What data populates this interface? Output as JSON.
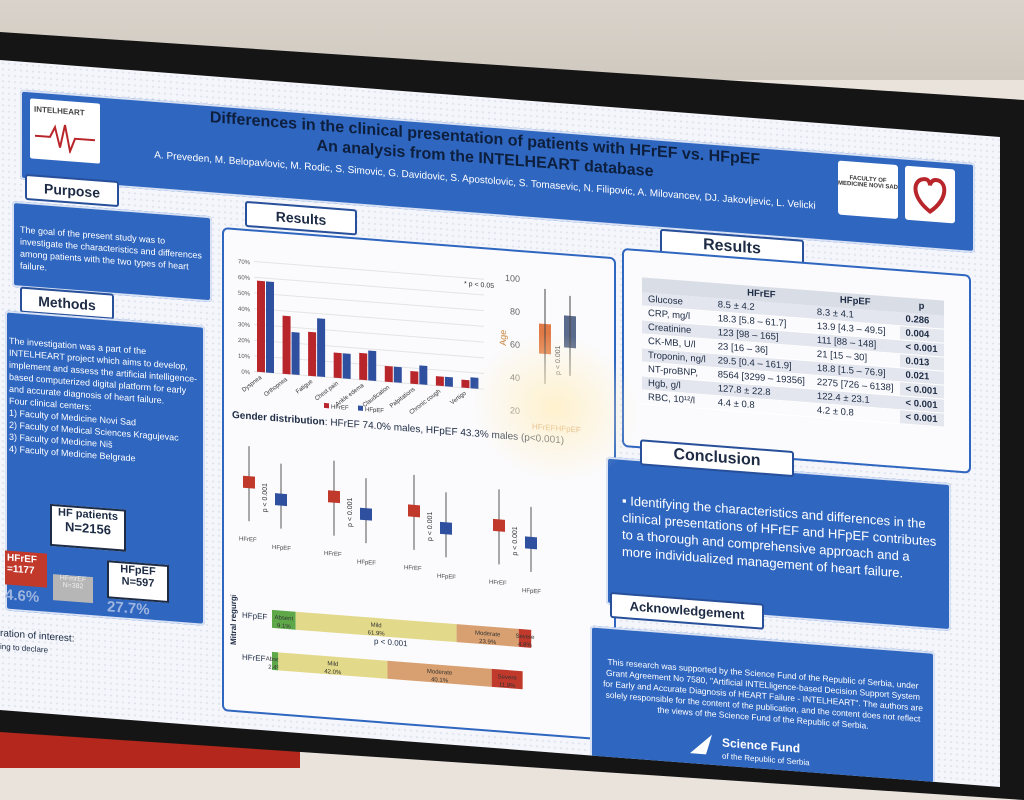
{
  "poster": {
    "logo_left": "INTELHEART",
    "title_line1": "Differences in the clinical presentation of patients with HFrEF vs. HFpEF",
    "title_line2": "An analysis from the INTELHEART database",
    "authors": "A. Preveden, M. Belopavlovic, M. Rodic, S. Simovic, G. Davidovic, S. Apostolovic, S. Tomasevic, N. Filipovic, A. Milovancev, DJ. Jakovljevic, L. Velicki",
    "logo_right": "FACULTY OF MEDICINE NOVI SAD"
  },
  "purpose": {
    "heading": "Purpose",
    "text": "The goal of the present study was to investigate the characteristics and differences among patients with the two types of heart failure."
  },
  "methods": {
    "heading": "Methods",
    "text1": "The investigation was a part of the INTELHEART project which aims to develop, implement and assess the artificial intelligence-based computerized digital platform for early and accurate diagnosis of heart failure.",
    "centers_label": "Four clinical centers:",
    "center1": "1) Faculty of Medicine Novi Sad",
    "center2": "2) Faculty of Medical Sciences Kragujevac",
    "center3": "3) Faculty of Medicine Niš",
    "center4": "4) Faculty of Medicine Belgrade",
    "hf_patients": "HF patients",
    "hf_n": "N=2156",
    "hfref_label": "HFrEF",
    "hfref_n": "=1177",
    "hfmref_label": "HFmrEF",
    "hfmref_n": "N=382",
    "hfpef_label": "HFpEF",
    "hfpef_n": "N=597",
    "pct_left": "4.6%",
    "pct_right": "27.7%",
    "footer": "ration of interest:",
    "footer2": "ing to declare"
  },
  "results_center": {
    "heading": "Results",
    "p_note": "* p < 0.05",
    "gender_label": "Gender distribution",
    "gender_text": ": HFrEF 74.0% males, HFpEF 43.3% males (p<0.001)",
    "age_label": "Age",
    "age_p": "p < 0.001",
    "age_xlabel": "HFrEFHFpEF",
    "mitral_label": "Mitral regurgitation",
    "mitral_p": "p < 0.001",
    "box_p": "p < 0.001",
    "box_x1": "HFrEF",
    "box_x2": "HFpEF"
  },
  "chart_data": [
    {
      "type": "bar",
      "categories": [
        "Dyspnea",
        "Orthopnea",
        "Fatigue",
        "Chest pain",
        "Ankle edema",
        "Claudication",
        "Palpitations",
        "Chronic cough",
        "Vertigo"
      ],
      "series": [
        {
          "name": "HFrEF",
          "values": [
            58,
            37,
            28,
            16,
            17,
            10,
            8,
            6,
            5
          ]
        },
        {
          "name": "HFpEF",
          "values": [
            58,
            27,
            37,
            16,
            19,
            10,
            12,
            6,
            7
          ]
        }
      ],
      "yticks": [
        "0%",
        "10%",
        "20%",
        "30%",
        "40%",
        "50%",
        "60%",
        "70%"
      ],
      "ylim": [
        0,
        70
      ],
      "colors": [
        "#b8262b",
        "#2f4f9f"
      ]
    },
    {
      "type": "table",
      "title": "Mitral regurgitation",
      "rows": [
        {
          "group": "HFpEF",
          "absent": "9.1%",
          "mild": "61.9%",
          "moderate": "23.9%",
          "severe": "4.8%"
        },
        {
          "group": "HFrEF",
          "absent": "2.4%",
          "mild": "42.0%",
          "moderate": "40.1%",
          "severe": "11.9%"
        }
      ],
      "labels": [
        "Absent",
        "Mild",
        "Moderate",
        "Severe"
      ]
    }
  ],
  "results_right": {
    "heading": "Results",
    "col1": "HFrEF",
    "col2": "HFpEF",
    "col3": "p",
    "rows": [
      {
        "name": "Glucose",
        "hfref": "8.5 ± 4.2",
        "hfpef": "8.3 ± 4.1",
        "p": "0.286"
      },
      {
        "name": "CRP, mg/l",
        "hfref": "18.3 [5.8 – 61.7]",
        "hfpef": "13.9 [4.3 – 49.5]",
        "p": "0.004"
      },
      {
        "name": "Creatinine",
        "hfref": "123 [98 – 165]",
        "hfpef": "111 [88 – 148]",
        "p": "< 0.001"
      },
      {
        "name": "CK-MB, U/l",
        "hfref": "23 [16 – 36]",
        "hfpef": "21 [15 – 30]",
        "p": "0.013"
      },
      {
        "name": "Troponin, ng/l",
        "hfref": "29.5 [0.4 – 161.9]",
        "hfpef": "18.8 [1.5 – 76.9]",
        "p": "0.021"
      },
      {
        "name": "NT-proBNP,",
        "hfref": "8564 [3299 – 19356]",
        "hfpef": "2275 [726 – 6138]",
        "p": "< 0.001"
      },
      {
        "name": "Hgb, g/l",
        "hfref": "127.8 ± 22.8",
        "hfpef": "122.4 ± 23.1",
        "p": "< 0.001"
      },
      {
        "name": "RBC, 10¹²/l",
        "hfref": "4.4 ± 0.8",
        "hfpef": "4.2 ± 0.8",
        "p": "< 0.001"
      }
    ]
  },
  "conclusion": {
    "heading": "Conclusion",
    "text": "Identifying the characteristics and differences in the clinical presentations of HFrEF and HFpEF contributes to a thorough and comprehensive approach and a more individualized management of heart failure."
  },
  "acknowledgement": {
    "heading": "Acknowledgement",
    "text": "This research was supported by the Science Fund of the Republic of Serbia, under Grant Agreement No 7580, \"Artificial INTELligence-based Decision Support System for Early and Accurate Diagnosis of HEART Failure - INTELHEART\". The authors are solely responsible for the content of the publication, and the content does not reflect the views of the Science Fund of the Republic of Serbia.",
    "fund_name": "Science Fund",
    "fund_sub": "of the Republic of Serbia"
  }
}
